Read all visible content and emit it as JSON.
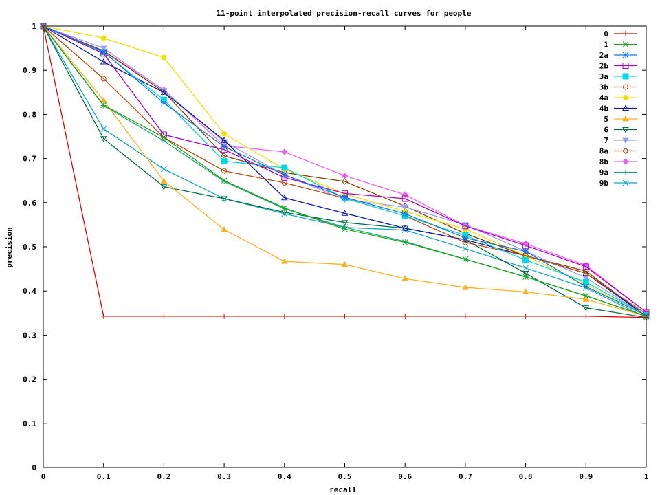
{
  "chart_data": {
    "type": "line",
    "title": "11-point interpolated precision-recall curves for people",
    "xlabel": "recall",
    "ylabel": "precision",
    "xlim": [
      0,
      1
    ],
    "ylim": [
      0,
      1
    ],
    "x_ticks": [
      "0",
      "0.1",
      "0.2",
      "0.3",
      "0.4",
      "0.5",
      "0.6",
      "0.7",
      "0.8",
      "0.9",
      "1"
    ],
    "y_ticks": [
      "0",
      "0.1",
      "0.2",
      "0.3",
      "0.4",
      "0.5",
      "0.6",
      "0.7",
      "0.8",
      "0.9",
      "1"
    ],
    "grid": false,
    "legend_position": "top-right",
    "x": [
      0,
      0.1,
      0.2,
      0.3,
      0.4,
      0.5,
      0.6,
      0.7,
      0.8,
      0.9,
      1.0
    ],
    "series": [
      {
        "name": "0",
        "color": "#e00000",
        "marker": "plus",
        "values": [
          1.0,
          0.343,
          0.343,
          0.343,
          0.343,
          0.343,
          0.343,
          0.343,
          0.343,
          0.343,
          0.34
        ]
      },
      {
        "name": "1",
        "color": "#1ea51e",
        "marker": "cross",
        "values": [
          1.0,
          0.821,
          0.748,
          0.65,
          0.588,
          0.54,
          0.51,
          0.472,
          0.432,
          0.389,
          0.343
        ]
      },
      {
        "name": "2a",
        "color": "#1a78d6",
        "marker": "star",
        "values": [
          1.0,
          0.942,
          0.826,
          0.727,
          0.663,
          0.612,
          0.575,
          0.52,
          0.49,
          0.41,
          0.345
        ]
      },
      {
        "name": "2b",
        "color": "#a800cf",
        "marker": "box",
        "values": [
          1.0,
          0.938,
          0.754,
          0.72,
          0.657,
          0.621,
          0.609,
          0.547,
          0.503,
          0.455,
          0.352
        ]
      },
      {
        "name": "3a",
        "color": "#00d8e8",
        "marker": "fbox",
        "values": [
          1.0,
          0.941,
          0.833,
          0.694,
          0.679,
          0.61,
          0.57,
          0.526,
          0.47,
          0.42,
          0.345
        ]
      },
      {
        "name": "3b",
        "color": "#bc4b10",
        "marker": "circle",
        "values": [
          1.0,
          0.881,
          0.748,
          0.672,
          0.645,
          0.61,
          0.57,
          0.51,
          0.48,
          0.44,
          0.348
        ]
      },
      {
        "name": "4a",
        "color": "#f0e000",
        "marker": "fcircle",
        "values": [
          1.0,
          0.973,
          0.929,
          0.756,
          0.676,
          0.62,
          0.58,
          0.54,
          0.48,
          0.415,
          0.343
        ]
      },
      {
        "name": "4b",
        "color": "#1018a8",
        "marker": "triangle",
        "values": [
          1.0,
          0.919,
          0.85,
          0.741,
          0.611,
          0.576,
          0.542,
          0.516,
          0.48,
          0.44,
          0.343
        ]
      },
      {
        "name": "5",
        "color": "#ffb020",
        "marker": "ftriangle",
        "values": [
          1.0,
          0.832,
          0.649,
          0.539,
          0.467,
          0.46,
          0.428,
          0.408,
          0.398,
          0.381,
          0.343
        ]
      },
      {
        "name": "6",
        "color": "#007040",
        "marker": "itriangle",
        "values": [
          1.0,
          0.745,
          0.636,
          0.609,
          0.578,
          0.555,
          0.542,
          0.516,
          0.44,
          0.362,
          0.34
        ]
      },
      {
        "name": "7",
        "color": "#9a9aff",
        "marker": "fitriangle",
        "values": [
          1.0,
          0.95,
          0.854,
          0.738,
          0.663,
          0.607,
          0.59,
          0.55,
          0.49,
          0.43,
          0.343
        ]
      },
      {
        "name": "8a",
        "color": "#8a4000",
        "marker": "diamond",
        "values": [
          1.0,
          0.944,
          0.851,
          0.706,
          0.668,
          0.648,
          0.592,
          0.53,
          0.48,
          0.445,
          0.343
        ]
      },
      {
        "name": "8b",
        "color": "#f060f0",
        "marker": "fdiamond",
        "values": [
          1.0,
          0.944,
          0.856,
          0.729,
          0.715,
          0.661,
          0.618,
          0.548,
          0.507,
          0.458,
          0.352
        ]
      },
      {
        "name": "9a",
        "color": "#20a870",
        "marker": "plus",
        "values": [
          1.0,
          0.82,
          0.74,
          0.648,
          0.586,
          0.544,
          0.512,
          0.472,
          0.432,
          0.389,
          0.343
        ]
      },
      {
        "name": "9b",
        "color": "#10a8c0",
        "marker": "cross",
        "values": [
          1.0,
          0.767,
          0.676,
          0.609,
          0.575,
          0.544,
          0.538,
          0.496,
          0.452,
          0.407,
          0.34
        ]
      }
    ]
  }
}
